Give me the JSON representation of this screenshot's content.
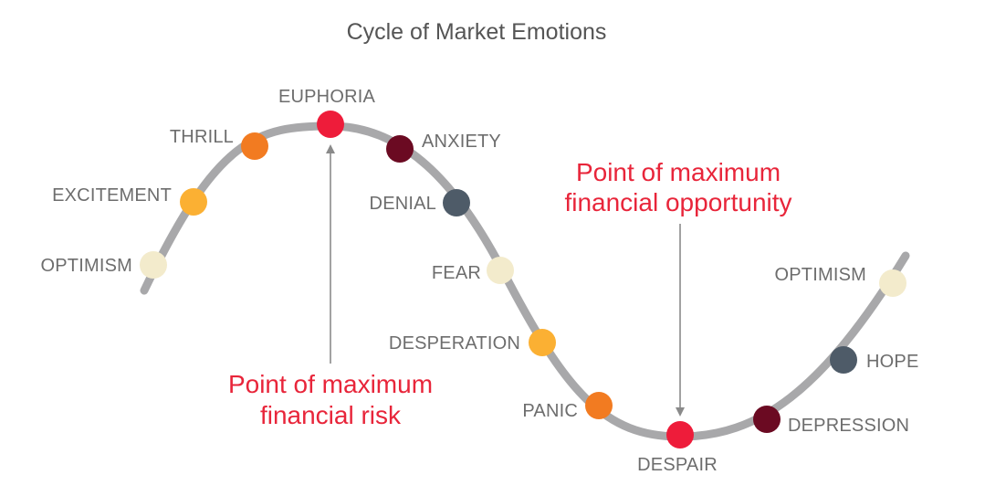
{
  "title": "Cycle of Market Emotions",
  "colors": {
    "curve": "#a8a8aa",
    "cream": "#f3ebcc",
    "yellow": "#fbb033",
    "orange": "#f27b21",
    "red": "#ee1c3a",
    "maroon": "#6b0a22",
    "slate": "#4e5b68",
    "callout": "#e8253a",
    "label": "#6d6d6d"
  },
  "stages": [
    {
      "label": "OPTIMISM",
      "color": "cream"
    },
    {
      "label": "EXCITEMENT",
      "color": "yellow"
    },
    {
      "label": "THRILL",
      "color": "orange"
    },
    {
      "label": "EUPHORIA",
      "color": "red"
    },
    {
      "label": "ANXIETY",
      "color": "maroon"
    },
    {
      "label": "DENIAL",
      "color": "slate"
    },
    {
      "label": "FEAR",
      "color": "cream"
    },
    {
      "label": "DESPERATION",
      "color": "yellow"
    },
    {
      "label": "PANIC",
      "color": "orange"
    },
    {
      "label": "DESPAIR",
      "color": "red"
    },
    {
      "label": "DEPRESSION",
      "color": "maroon"
    },
    {
      "label": "HOPE",
      "color": "slate"
    },
    {
      "label": "OPTIMISM",
      "color": "cream"
    }
  ],
  "callouts": {
    "risk": {
      "line1": "Point of maximum",
      "line2": "financial risk"
    },
    "opportunity": {
      "line1": "Point of maximum",
      "line2": "financial opportunity"
    }
  }
}
